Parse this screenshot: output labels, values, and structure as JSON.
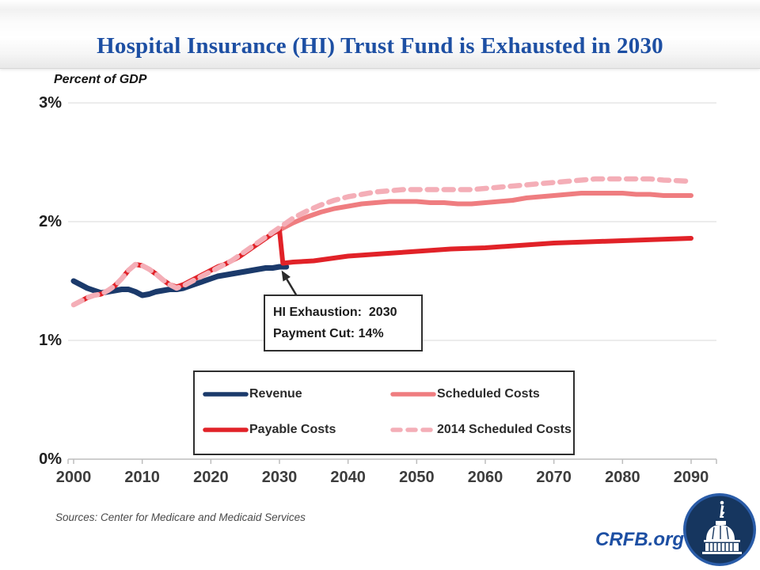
{
  "header": {
    "title": "Hospital Insurance (HI) Trust Fund is Exhausted in 2030"
  },
  "chart_data": {
    "type": "line",
    "title": "Hospital Insurance (HI) Trust Fund is Exhausted in 2030",
    "ylabel": "Percent of GDP",
    "xlabel": "",
    "xlim": [
      2000,
      2090
    ],
    "ylim": [
      0,
      3
    ],
    "grid": "horizontal",
    "legend_position": "bottom-center-boxed",
    "yticks": [
      {
        "value": 0,
        "label": "0%"
      },
      {
        "value": 1,
        "label": "1%"
      },
      {
        "value": 2,
        "label": "2%"
      },
      {
        "value": 3,
        "label": "3%"
      }
    ],
    "xticks": [
      2000,
      2010,
      2020,
      2030,
      2040,
      2050,
      2060,
      2070,
      2080,
      2090
    ],
    "series": [
      {
        "name": "Revenue",
        "color": "#1b3a6b",
        "style": "solid",
        "width": 7,
        "points": [
          [
            2000,
            1.5
          ],
          [
            2001,
            1.47
          ],
          [
            2002,
            1.44
          ],
          [
            2003,
            1.42
          ],
          [
            2004,
            1.4
          ],
          [
            2005,
            1.41
          ],
          [
            2006,
            1.42
          ],
          [
            2007,
            1.43
          ],
          [
            2008,
            1.43
          ],
          [
            2009,
            1.41
          ],
          [
            2010,
            1.38
          ],
          [
            2011,
            1.39
          ],
          [
            2012,
            1.41
          ],
          [
            2013,
            1.42
          ],
          [
            2014,
            1.43
          ],
          [
            2015,
            1.43
          ],
          [
            2016,
            1.44
          ],
          [
            2017,
            1.46
          ],
          [
            2018,
            1.48
          ],
          [
            2019,
            1.5
          ],
          [
            2020,
            1.52
          ],
          [
            2021,
            1.54
          ],
          [
            2022,
            1.55
          ],
          [
            2023,
            1.56
          ],
          [
            2024,
            1.57
          ],
          [
            2025,
            1.58
          ],
          [
            2026,
            1.59
          ],
          [
            2027,
            1.6
          ],
          [
            2028,
            1.61
          ],
          [
            2029,
            1.61
          ],
          [
            2030,
            1.62
          ],
          [
            2031,
            1.62
          ]
        ]
      },
      {
        "name": "Scheduled Costs",
        "color": "#ef7d80",
        "style": "solid",
        "width": 6,
        "points": [
          [
            2000,
            1.3
          ],
          [
            2001,
            1.33
          ],
          [
            2002,
            1.36
          ],
          [
            2003,
            1.38
          ],
          [
            2004,
            1.39
          ],
          [
            2005,
            1.42
          ],
          [
            2006,
            1.46
          ],
          [
            2007,
            1.52
          ],
          [
            2008,
            1.59
          ],
          [
            2009,
            1.64
          ],
          [
            2010,
            1.63
          ],
          [
            2011,
            1.6
          ],
          [
            2012,
            1.56
          ],
          [
            2013,
            1.51
          ],
          [
            2014,
            1.47
          ],
          [
            2015,
            1.45
          ],
          [
            2016,
            1.47
          ],
          [
            2017,
            1.5
          ],
          [
            2018,
            1.53
          ],
          [
            2019,
            1.56
          ],
          [
            2020,
            1.59
          ],
          [
            2021,
            1.62
          ],
          [
            2022,
            1.64
          ],
          [
            2023,
            1.67
          ],
          [
            2024,
            1.7
          ],
          [
            2025,
            1.74
          ],
          [
            2026,
            1.78
          ],
          [
            2027,
            1.82
          ],
          [
            2028,
            1.86
          ],
          [
            2029,
            1.9
          ],
          [
            2030,
            1.93
          ],
          [
            2032,
            1.99
          ],
          [
            2034,
            2.04
          ],
          [
            2036,
            2.08
          ],
          [
            2038,
            2.11
          ],
          [
            2040,
            2.13
          ],
          [
            2042,
            2.15
          ],
          [
            2044,
            2.16
          ],
          [
            2046,
            2.17
          ],
          [
            2048,
            2.17
          ],
          [
            2050,
            2.17
          ],
          [
            2052,
            2.16
          ],
          [
            2054,
            2.16
          ],
          [
            2056,
            2.15
          ],
          [
            2058,
            2.15
          ],
          [
            2060,
            2.16
          ],
          [
            2062,
            2.17
          ],
          [
            2064,
            2.18
          ],
          [
            2066,
            2.2
          ],
          [
            2068,
            2.21
          ],
          [
            2070,
            2.22
          ],
          [
            2072,
            2.23
          ],
          [
            2074,
            2.24
          ],
          [
            2076,
            2.24
          ],
          [
            2078,
            2.24
          ],
          [
            2080,
            2.24
          ],
          [
            2082,
            2.23
          ],
          [
            2084,
            2.23
          ],
          [
            2086,
            2.22
          ],
          [
            2088,
            2.22
          ],
          [
            2090,
            2.22
          ]
        ]
      },
      {
        "name": "Payable Costs",
        "color": "#e12228",
        "style": "solid",
        "width": 6,
        "points": [
          [
            2000,
            1.3
          ],
          [
            2001,
            1.33
          ],
          [
            2002,
            1.36
          ],
          [
            2003,
            1.38
          ],
          [
            2004,
            1.39
          ],
          [
            2005,
            1.42
          ],
          [
            2006,
            1.46
          ],
          [
            2007,
            1.52
          ],
          [
            2008,
            1.59
          ],
          [
            2009,
            1.64
          ],
          [
            2010,
            1.63
          ],
          [
            2011,
            1.6
          ],
          [
            2012,
            1.56
          ],
          [
            2013,
            1.51
          ],
          [
            2014,
            1.47
          ],
          [
            2015,
            1.45
          ],
          [
            2016,
            1.47
          ],
          [
            2017,
            1.5
          ],
          [
            2018,
            1.53
          ],
          [
            2019,
            1.56
          ],
          [
            2020,
            1.59
          ],
          [
            2021,
            1.62
          ],
          [
            2022,
            1.64
          ],
          [
            2023,
            1.67
          ],
          [
            2024,
            1.7
          ],
          [
            2025,
            1.74
          ],
          [
            2026,
            1.78
          ],
          [
            2027,
            1.82
          ],
          [
            2028,
            1.86
          ],
          [
            2029,
            1.9
          ],
          [
            2030,
            1.93
          ],
          [
            2030.5,
            1.65
          ],
          [
            2032,
            1.66
          ],
          [
            2035,
            1.67
          ],
          [
            2040,
            1.71
          ],
          [
            2045,
            1.73
          ],
          [
            2050,
            1.75
          ],
          [
            2055,
            1.77
          ],
          [
            2060,
            1.78
          ],
          [
            2065,
            1.8
          ],
          [
            2070,
            1.82
          ],
          [
            2075,
            1.83
          ],
          [
            2080,
            1.84
          ],
          [
            2085,
            1.85
          ],
          [
            2090,
            1.86
          ]
        ]
      },
      {
        "name": "2014 Scheduled Costs",
        "color": "#f4aeb7",
        "style": "dashed",
        "width": 6.5,
        "points": [
          [
            2000,
            1.3
          ],
          [
            2001,
            1.33
          ],
          [
            2002,
            1.36
          ],
          [
            2003,
            1.38
          ],
          [
            2004,
            1.39
          ],
          [
            2005,
            1.42
          ],
          [
            2006,
            1.46
          ],
          [
            2007,
            1.52
          ],
          [
            2008,
            1.59
          ],
          [
            2009,
            1.64
          ],
          [
            2010,
            1.63
          ],
          [
            2011,
            1.6
          ],
          [
            2012,
            1.56
          ],
          [
            2013,
            1.51
          ],
          [
            2014,
            1.47
          ],
          [
            2015,
            1.44
          ],
          [
            2016,
            1.46
          ],
          [
            2017,
            1.49
          ],
          [
            2018,
            1.52
          ],
          [
            2019,
            1.55
          ],
          [
            2020,
            1.58
          ],
          [
            2021,
            1.61
          ],
          [
            2022,
            1.64
          ],
          [
            2023,
            1.67
          ],
          [
            2024,
            1.71
          ],
          [
            2025,
            1.75
          ],
          [
            2026,
            1.79
          ],
          [
            2027,
            1.83
          ],
          [
            2028,
            1.87
          ],
          [
            2029,
            1.91
          ],
          [
            2030,
            1.95
          ],
          [
            2032,
            2.03
          ],
          [
            2034,
            2.09
          ],
          [
            2036,
            2.14
          ],
          [
            2038,
            2.18
          ],
          [
            2040,
            2.21
          ],
          [
            2042,
            2.23
          ],
          [
            2044,
            2.25
          ],
          [
            2046,
            2.26
          ],
          [
            2048,
            2.27
          ],
          [
            2050,
            2.27
          ],
          [
            2054,
            2.27
          ],
          [
            2058,
            2.27
          ],
          [
            2060,
            2.28
          ],
          [
            2062,
            2.29
          ],
          [
            2064,
            2.3
          ],
          [
            2066,
            2.31
          ],
          [
            2068,
            2.32
          ],
          [
            2070,
            2.33
          ],
          [
            2072,
            2.34
          ],
          [
            2074,
            2.35
          ],
          [
            2076,
            2.36
          ],
          [
            2080,
            2.36
          ],
          [
            2084,
            2.36
          ],
          [
            2086,
            2.35
          ],
          [
            2090,
            2.34
          ]
        ]
      }
    ],
    "annotation": {
      "line1": "HI Exhaustion:  2030",
      "line2": "Payment Cut: 14%",
      "point_year": 2030.3,
      "point_value": 1.59
    }
  },
  "footer": {
    "sources": "Sources: Center for Medicare and Medicaid Services",
    "brand": "CRFB.org"
  },
  "logo": {
    "name": "crfb-capitol-logo",
    "ring_color": "#2a5ca8",
    "fill_color": "#16365f"
  }
}
